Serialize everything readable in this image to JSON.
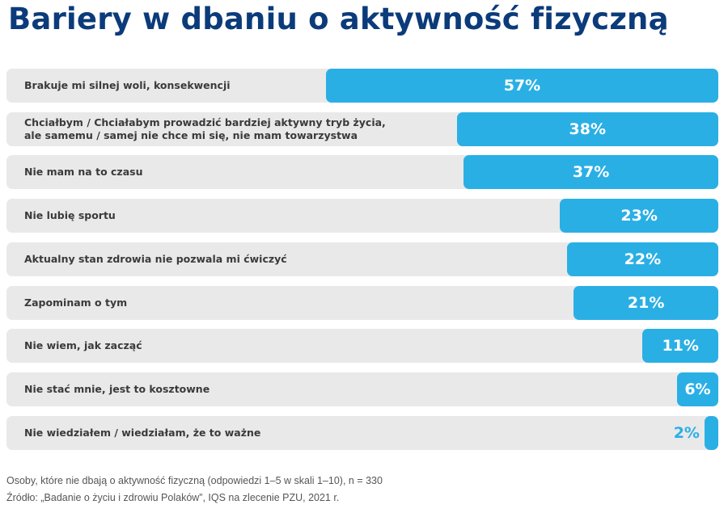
{
  "title": "Bariery w dbaniu o aktywność fizyczną",
  "colors": {
    "title": "#0b3b7a",
    "bar": "#2aafe5",
    "track": "#e9e9ea",
    "label": "#3a3a3a"
  },
  "chart_data": {
    "type": "bar",
    "orientation": "horizontal",
    "categories": [
      "Brakuje mi silnej woli, konsekwencji",
      "Chciałbym / Chciałabym prowadzić bardziej aktywny tryb życia,\nale samemu / samej nie chce mi się, nie mam towarzystwa",
      "Nie mam na to czasu",
      "Nie lubię sportu",
      "Aktualny stan zdrowia nie pozwala mi ćwiczyć",
      "Zapominam o tym",
      "Nie wiem, jak zacząć",
      "Nie stać mnie, jest to kosztowne",
      "Nie wiedziałem / wiedziałam, że to ważne"
    ],
    "values": [
      57,
      38,
      37,
      23,
      22,
      21,
      11,
      6,
      2
    ],
    "value_labels": [
      "57%",
      "38%",
      "37%",
      "23%",
      "22%",
      "21%",
      "11%",
      "6%",
      "2%"
    ],
    "unit": "%",
    "xlim": [
      0,
      100
    ]
  },
  "footer": {
    "note": "Osoby, które nie dbają o aktywność fizyczną (odpowiedzi 1–5 w skali 1–10), n = 330",
    "source": "Źródło: „Badanie o życiu i zdrowiu Polaków”, IQS na zlecenie PZU, 2021 r."
  }
}
